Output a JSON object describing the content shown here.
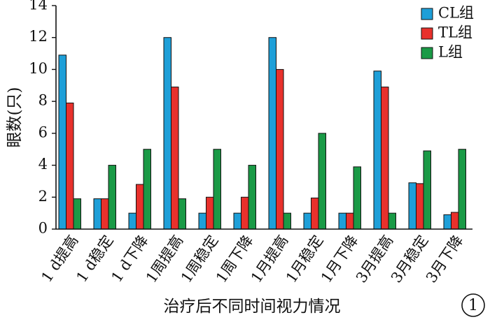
{
  "chart_data": {
    "type": "bar",
    "title": "",
    "xlabel": "治疗后不同时间视力情况",
    "ylabel": "眼数(只)",
    "ylim": [
      0,
      14
    ],
    "yticks": [
      "0",
      "2",
      "4",
      "6",
      "8",
      "10",
      "12",
      "14"
    ],
    "grid": false,
    "legend_position": "top-right",
    "categories": [
      "1 d提高",
      "1 d稳定",
      "1 d下降",
      "1周提高",
      "1周稳定",
      "1周下降",
      "1月提高",
      "1月稳定",
      "1月下降",
      "3月提高",
      "3月稳定",
      "3月下降"
    ],
    "series": [
      {
        "name": "CL组",
        "color": "#1E9FD8",
        "values": [
          10.9,
          1.9,
          1.0,
          12.0,
          1.0,
          1.0,
          12.0,
          1.0,
          1.0,
          9.9,
          2.9,
          0.9
        ]
      },
      {
        "name": "TL组",
        "color": "#E8312C",
        "values": [
          7.9,
          1.9,
          2.8,
          8.9,
          2.0,
          2.0,
          10.0,
          1.95,
          1.0,
          8.9,
          2.85,
          1.05
        ]
      },
      {
        "name": "L组",
        "color": "#1A9A46",
        "values": [
          1.9,
          4.0,
          5.0,
          1.9,
          5.0,
          4.0,
          1.0,
          6.0,
          3.9,
          1.0,
          4.9,
          5.0
        ]
      }
    ],
    "badge": "1"
  }
}
